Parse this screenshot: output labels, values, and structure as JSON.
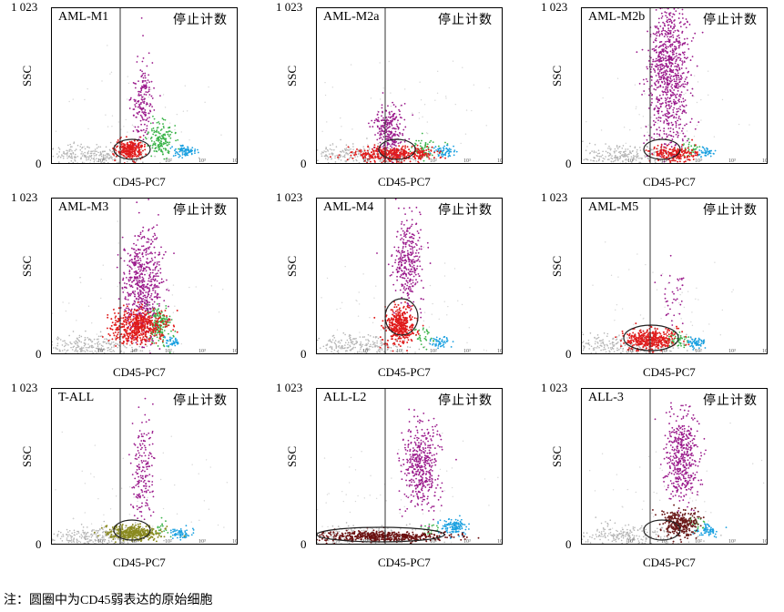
{
  "chart_data": {
    "type": "scatter",
    "panels": [
      {
        "name": "AML-M1",
        "stop_label": "停止计数",
        "xlabel": "CD45-PC7",
        "ylabel": "SSC",
        "ylim_max_label": "1 023",
        "ylim_min_label": "0",
        "blast_color": "#e01b1b",
        "gate": "low"
      },
      {
        "name": "AML-M2a",
        "stop_label": "停止计数",
        "xlabel": "CD45-PC7",
        "ylabel": "SSC",
        "ylim_max_label": "1 023",
        "ylim_min_label": "0",
        "blast_color": "#e01b1b",
        "gate": "low"
      },
      {
        "name": "AML-M2b",
        "stop_label": "停止计数",
        "xlabel": "CD45-PC7",
        "ylabel": "SSC",
        "ylim_max_label": "1 023",
        "ylim_min_label": "0",
        "blast_color": "#e01b1b",
        "gate": "low"
      },
      {
        "name": "AML-M3",
        "stop_label": "停止计数",
        "xlabel": "CD45-PC7",
        "ylabel": "SSC",
        "ylim_max_label": "1 023",
        "ylim_min_label": "0",
        "blast_color": "#e01b1b",
        "gate": "none"
      },
      {
        "name": "AML-M4",
        "stop_label": "停止计数",
        "xlabel": "CD45-PC7",
        "ylabel": "SSC",
        "ylim_max_label": "1 023",
        "ylim_min_label": "0",
        "blast_color": "#e01b1b",
        "gate": "mid"
      },
      {
        "name": "AML-M5",
        "stop_label": "停止计数",
        "xlabel": "CD45-PC7",
        "ylabel": "SSC",
        "ylim_max_label": "1 023",
        "ylim_min_label": "0",
        "blast_color": "#e01b1b",
        "gate": "low-wide"
      },
      {
        "name": "T-ALL",
        "stop_label": "停止计数",
        "xlabel": "CD45-PC7",
        "ylabel": "SSC",
        "ylim_max_label": "1 023",
        "ylim_min_label": "0",
        "blast_color": "#8a8a20",
        "gate": "low"
      },
      {
        "name": "ALL-L2",
        "stop_label": "停止计数",
        "xlabel": "CD45-PC7",
        "ylabel": "SSC",
        "ylim_max_label": "1 023",
        "ylim_min_label": "0",
        "blast_color": "#6b1010",
        "gate": "flat"
      },
      {
        "name": "ALL-3",
        "stop_label": "停止计数",
        "xlabel": "CD45-PC7",
        "ylabel": "SSC",
        "ylim_max_label": "1 023",
        "ylim_min_label": "0",
        "blast_color": "#6b1a1a",
        "gate": "low"
      }
    ],
    "x_tick_labels": [
      "10⁰",
      "10¹",
      "10²",
      "10³",
      "10⁴"
    ],
    "population_colors": {
      "debris": "#b5b5b5",
      "blasts": "#e01b1b",
      "granulocytes": "#9b1b8c",
      "monocytes": "#3cb44b",
      "lymphocytes": "#1aa0e0"
    }
  },
  "footnote": "注：圆圈中为CD45弱表达的原始细胞"
}
